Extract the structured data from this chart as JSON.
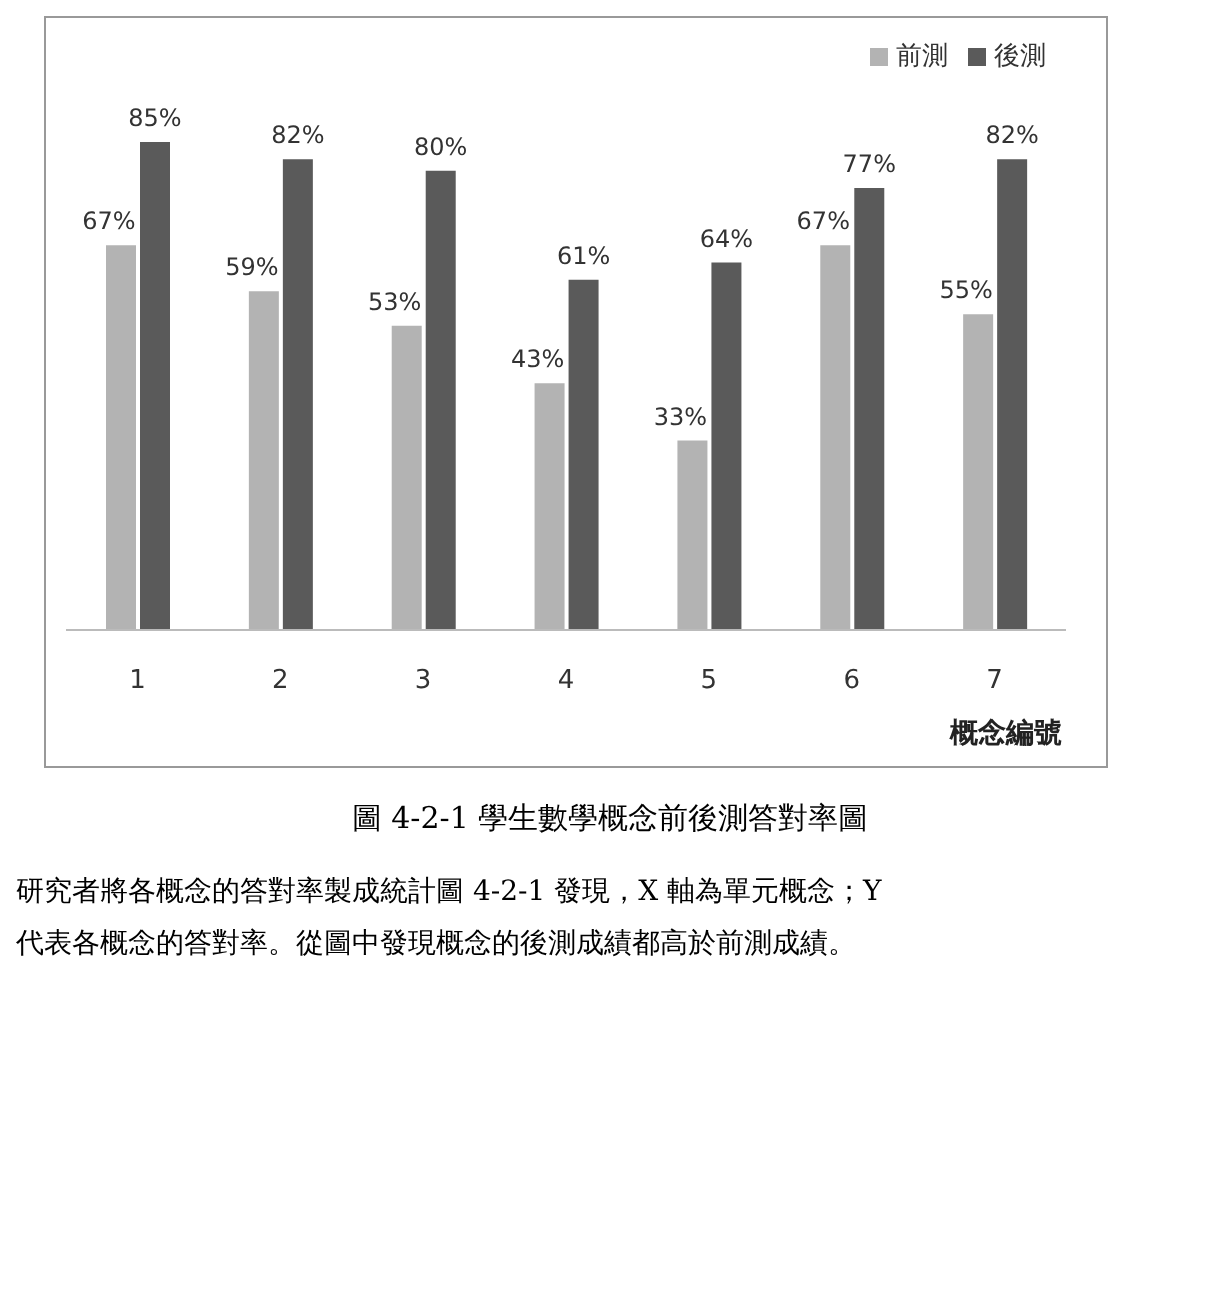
{
  "chart_data": {
    "type": "bar",
    "xlabel": "概念編號",
    "categories": [
      "1",
      "2",
      "3",
      "4",
      "5",
      "6",
      "7"
    ],
    "series": [
      {
        "name": "前測",
        "color": "#b3b3b3",
        "values": [
          67,
          59,
          53,
          43,
          33,
          67,
          55
        ],
        "value_labels": [
          "67%",
          "59%",
          "53%",
          "43%",
          "33%",
          "67%",
          "55%"
        ]
      },
      {
        "name": "後測",
        "color": "#5a5a5a",
        "values": [
          85,
          82,
          80,
          61,
          64,
          77,
          82
        ],
        "value_labels": [
          "85%",
          "82%",
          "80%",
          "61%",
          "64%",
          "77%",
          "82%"
        ]
      }
    ],
    "legend": "top right",
    "grid": false,
    "annotations": [
      "圖 4-2-1 學生數學概念前後測答對率圖",
      "研究者將各概念的答對率製成統計圖 4-2-1 發現，X 軸為單元概念；Y",
      "代表各概念的答對率。從圖中發現概念的後測成績都高於前測成績。"
    ]
  }
}
